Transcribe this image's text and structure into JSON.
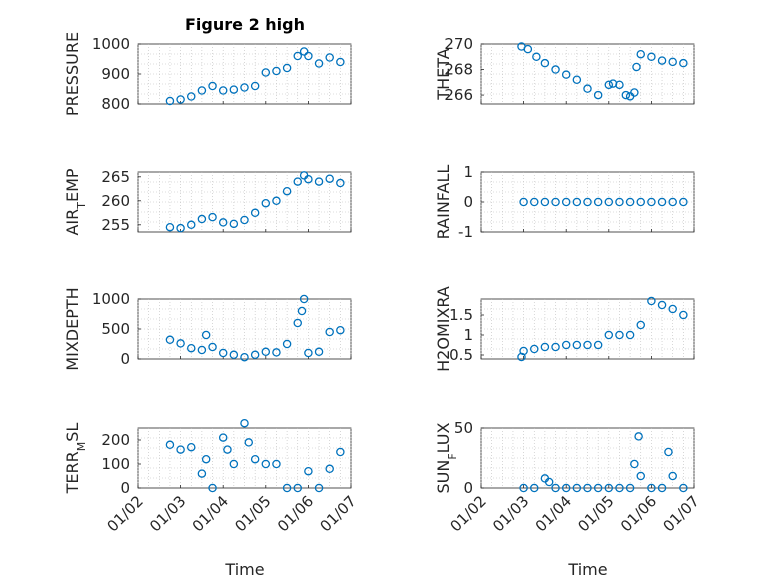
{
  "chart_data": {
    "title": "Figure 2 high",
    "xlabel": "Time",
    "type": "scatter",
    "x_ticks": [
      "01/02",
      "01/03",
      "01/04",
      "01/05",
      "01/06",
      "01/07"
    ],
    "panels": [
      {
        "id": "pressure",
        "ylabel": [
          "PRESSURE"
        ],
        "ylim": [
          800,
          1000
        ],
        "yticks": [
          800,
          900,
          1000
        ],
        "yticklabels": [
          "800",
          "900",
          "1000"
        ],
        "x": [
          2.75,
          3.0,
          3.25,
          3.5,
          3.75,
          4.0,
          4.25,
          4.5,
          4.75,
          5.0,
          5.25,
          5.5,
          5.75,
          5.9,
          6.0,
          6.25,
          6.5,
          6.75
        ],
        "y": [
          810,
          815,
          825,
          845,
          860,
          845,
          848,
          855,
          860,
          905,
          910,
          920,
          960,
          975,
          960,
          935,
          955,
          940
        ]
      },
      {
        "id": "theta",
        "ylabel": [
          "THETA"
        ],
        "ylim": [
          265.3,
          270
        ],
        "yticks": [
          266,
          268,
          270
        ],
        "yticklabels": [
          "266",
          "268",
          "270"
        ],
        "x": [
          2.95,
          3.1,
          3.3,
          3.5,
          3.75,
          4.0,
          4.25,
          4.5,
          4.75,
          5.0,
          5.1,
          5.25,
          5.4,
          5.5,
          5.6,
          5.65,
          5.75,
          6.0,
          6.25,
          6.5,
          6.75
        ],
        "y": [
          269.8,
          269.6,
          269.0,
          268.5,
          268.0,
          267.6,
          267.2,
          266.5,
          266.0,
          266.8,
          266.9,
          266.8,
          266.0,
          265.9,
          266.2,
          268.2,
          269.2,
          269.0,
          268.7,
          268.6,
          268.5
        ]
      },
      {
        "id": "air_temp",
        "ylabel": [
          "AIR",
          "T",
          "EMP"
        ],
        "ylim": [
          253.5,
          266
        ],
        "yticks": [
          255,
          260,
          265
        ],
        "yticklabels": [
          "255",
          "260",
          "265"
        ],
        "x": [
          2.75,
          3.0,
          3.25,
          3.5,
          3.75,
          4.0,
          4.25,
          4.5,
          4.75,
          5.0,
          5.25,
          5.5,
          5.75,
          5.9,
          6.0,
          6.25,
          6.5,
          6.75
        ],
        "y": [
          254.5,
          254.3,
          255.0,
          256.2,
          256.6,
          255.5,
          255.2,
          256.0,
          257.5,
          259.5,
          260.0,
          262.0,
          264.0,
          265.3,
          264.5,
          264.0,
          264.6,
          263.7
        ]
      },
      {
        "id": "rainfall",
        "ylabel": [
          "RAINFALL"
        ],
        "ylim": [
          -1,
          1
        ],
        "yticks": [
          -1,
          0,
          1
        ],
        "yticklabels": [
          "-1",
          "0",
          "1"
        ],
        "x": [
          3.0,
          3.25,
          3.5,
          3.75,
          4.0,
          4.25,
          4.5,
          4.75,
          5.0,
          5.25,
          5.5,
          5.75,
          6.0,
          6.25,
          6.5,
          6.75
        ],
        "y": [
          0,
          0,
          0,
          0,
          0,
          0,
          0,
          0,
          0,
          0,
          0,
          0,
          0,
          0,
          0,
          0
        ]
      },
      {
        "id": "mixdepth",
        "ylabel": [
          "MIXDEPTH"
        ],
        "ylim": [
          0,
          1000
        ],
        "yticks": [
          0,
          500,
          1000
        ],
        "yticklabels": [
          "0",
          "500",
          "1000"
        ],
        "x": [
          2.75,
          3.0,
          3.25,
          3.5,
          3.6,
          3.75,
          4.0,
          4.25,
          4.5,
          4.75,
          5.0,
          5.25,
          5.5,
          5.75,
          5.85,
          5.9,
          6.0,
          6.25,
          6.5,
          6.75
        ],
        "y": [
          320,
          260,
          180,
          150,
          400,
          200,
          100,
          70,
          30,
          70,
          120,
          110,
          250,
          600,
          800,
          1000,
          100,
          120,
          450,
          480
        ]
      },
      {
        "id": "h2omixra",
        "ylabel": [
          "H2OMIXRA"
        ],
        "ylim": [
          0.4,
          1.9
        ],
        "yticks": [
          0.5,
          1,
          1.5
        ],
        "yticklabels": [
          "0.5",
          "1",
          "1.5"
        ],
        "x": [
          2.95,
          3.0,
          3.25,
          3.5,
          3.75,
          4.0,
          4.25,
          4.5,
          4.75,
          5.0,
          5.25,
          5.5,
          5.75,
          6.0,
          6.25,
          6.5,
          6.75
        ],
        "y": [
          0.45,
          0.6,
          0.65,
          0.7,
          0.7,
          0.75,
          0.75,
          0.75,
          0.75,
          1.0,
          1.0,
          1.0,
          1.25,
          1.85,
          1.75,
          1.65,
          1.5
        ]
      },
      {
        "id": "terr_msl",
        "ylabel": [
          "TERR",
          "M",
          "SL"
        ],
        "ylim": [
          0,
          250
        ],
        "yticks": [
          0,
          100,
          200
        ],
        "yticklabels": [
          "0",
          "100",
          "200"
        ],
        "x": [
          2.75,
          3.0,
          3.25,
          3.5,
          3.6,
          3.75,
          4.0,
          4.1,
          4.25,
          4.5,
          4.6,
          4.75,
          5.0,
          5.25,
          5.5,
          5.75,
          6.0,
          6.25,
          6.5,
          6.75
        ],
        "y": [
          180,
          160,
          170,
          60,
          120,
          0,
          210,
          160,
          100,
          270,
          190,
          120,
          100,
          100,
          0,
          0,
          70,
          0,
          80,
          150
        ]
      },
      {
        "id": "sun_flux",
        "ylabel": [
          "SUN",
          "F",
          "LUX"
        ],
        "ylim": [
          0,
          50
        ],
        "yticks": [
          0,
          50
        ],
        "yticklabels": [
          "0",
          "50"
        ],
        "x": [
          3.0,
          3.25,
          3.5,
          3.6,
          3.75,
          4.0,
          4.25,
          4.5,
          4.75,
          5.0,
          5.25,
          5.5,
          5.6,
          5.7,
          5.75,
          6.0,
          6.25,
          6.4,
          6.5,
          6.75
        ],
        "y": [
          0,
          0,
          8,
          5,
          0,
          0,
          0,
          0,
          0,
          0,
          0,
          0,
          20,
          43,
          10,
          0,
          0,
          30,
          10,
          0
        ]
      }
    ]
  }
}
